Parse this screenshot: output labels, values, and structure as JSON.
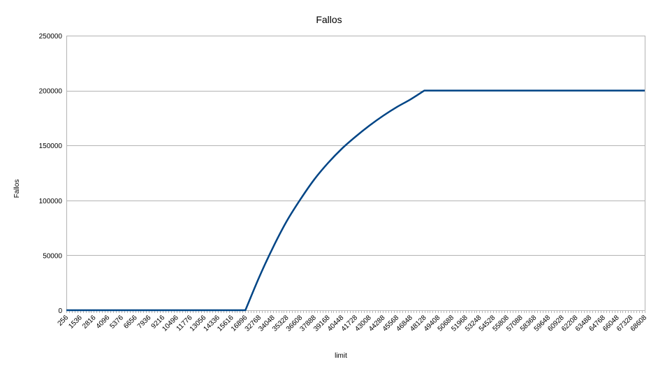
{
  "chart_data": {
    "type": "line",
    "title": "Fallos",
    "xlabel": "limit",
    "ylabel": "Fallos",
    "ylim": [
      0,
      250000
    ],
    "yticks": [
      0,
      50000,
      100000,
      150000,
      200000,
      250000
    ],
    "xtick_labels": [
      "256",
      "1536",
      "2816",
      "4096",
      "5376",
      "6656",
      "7936",
      "9216",
      "10496",
      "11776",
      "13056",
      "14336",
      "15616",
      "16896",
      "32768",
      "34048",
      "35328",
      "36608",
      "37888",
      "39168",
      "40448",
      "41728",
      "43008",
      "44288",
      "45568",
      "46848",
      "48128",
      "49408",
      "50688",
      "51968",
      "53248",
      "54528",
      "55808",
      "57088",
      "58368",
      "59648",
      "60928",
      "62208",
      "63488",
      "64768",
      "66048",
      "67328",
      "68608"
    ],
    "grid": true,
    "legend": "none",
    "series": [
      {
        "color": "#004586",
        "points": [
          [
            "256",
            0
          ],
          [
            "1536",
            0
          ],
          [
            "2816",
            0
          ],
          [
            "4096",
            0
          ],
          [
            "5376",
            0
          ],
          [
            "6656",
            0
          ],
          [
            "7936",
            0
          ],
          [
            "9216",
            0
          ],
          [
            "10496",
            0
          ],
          [
            "11776",
            0
          ],
          [
            "13056",
            0
          ],
          [
            "14336",
            0
          ],
          [
            "15616",
            0
          ],
          [
            "16896",
            0
          ],
          [
            "32768",
            30000
          ],
          [
            "34048",
            57000
          ],
          [
            "35328",
            81000
          ],
          [
            "36608",
            101000
          ],
          [
            "37888",
            119000
          ],
          [
            "39168",
            134000
          ],
          [
            "40448",
            147000
          ],
          [
            "41728",
            158000
          ],
          [
            "43008",
            168000
          ],
          [
            "44288",
            177000
          ],
          [
            "45568",
            185000
          ],
          [
            "46848",
            192000
          ],
          [
            "48128",
            200000
          ],
          [
            "49408",
            200000
          ],
          [
            "50688",
            200000
          ],
          [
            "51968",
            200000
          ],
          [
            "53248",
            200000
          ],
          [
            "54528",
            200000
          ],
          [
            "55808",
            200000
          ],
          [
            "57088",
            200000
          ],
          [
            "58368",
            200000
          ],
          [
            "59648",
            200000
          ],
          [
            "60928",
            200000
          ],
          [
            "62208",
            200000
          ],
          [
            "63488",
            200000
          ],
          [
            "64768",
            200000
          ],
          [
            "66048",
            200000
          ],
          [
            "67328",
            200000
          ],
          [
            "68608",
            200000
          ]
        ]
      }
    ]
  }
}
